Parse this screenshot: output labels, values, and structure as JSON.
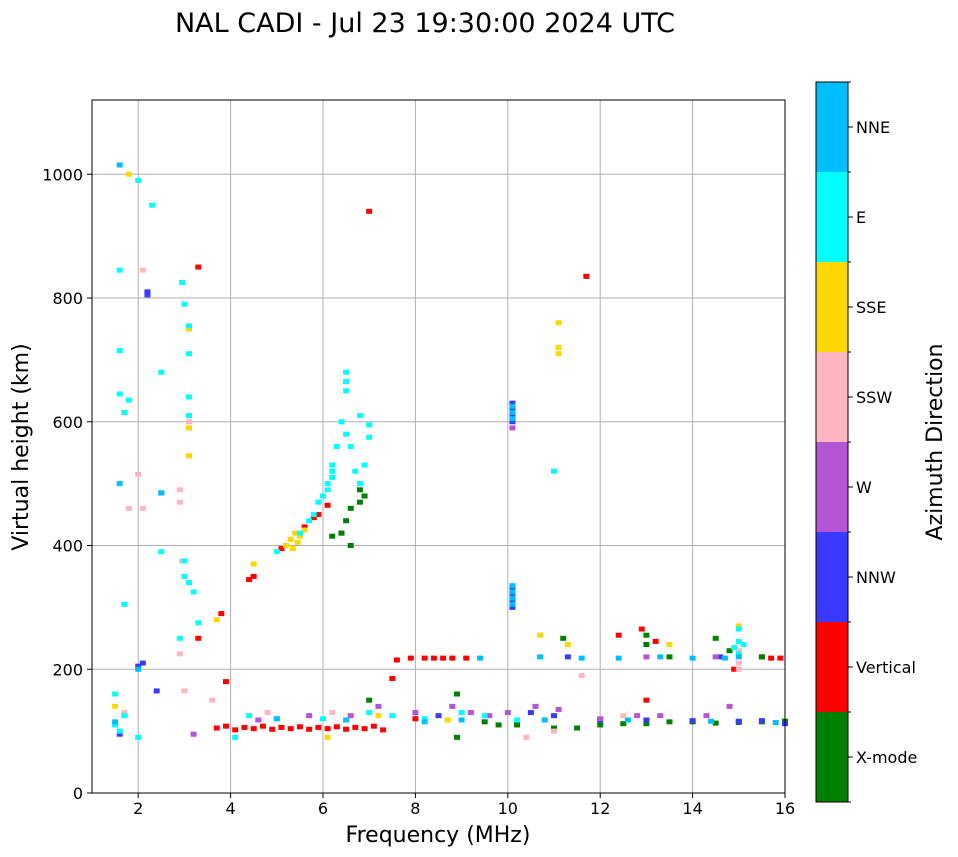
{
  "chart_data": {
    "type": "scatter",
    "title": "NAL CADI - Jul 23 19:30:00 2024 UTC",
    "xlabel": "Frequency (MHz)",
    "ylabel": "Virtual height (km)",
    "xlim": [
      1,
      16
    ],
    "ylim": [
      0,
      1120
    ],
    "xticks": [
      2,
      4,
      6,
      8,
      10,
      12,
      14,
      16
    ],
    "xtick_labels": [
      "2",
      "4",
      "6",
      "8",
      "10",
      "12",
      "14",
      "16"
    ],
    "yticks": [
      0,
      200,
      400,
      600,
      800,
      1000
    ],
    "ytick_labels": [
      "0",
      "200",
      "400",
      "600",
      "800",
      "1000"
    ],
    "grid": true,
    "colorbar": {
      "title": "Azimuth Direction",
      "categories": [
        {
          "label": "X-mode",
          "color": "#008000"
        },
        {
          "label": "Vertical",
          "color": "#ff0000"
        },
        {
          "label": "NNW",
          "color": "#3a3aff"
        },
        {
          "label": "W",
          "color": "#b455d6"
        },
        {
          "label": "SSW",
          "color": "#ffb6c1"
        },
        {
          "label": "SSE",
          "color": "#ffd700"
        },
        {
          "label": "E",
          "color": "#00ffff"
        },
        {
          "label": "NNE",
          "color": "#00bfff"
        }
      ]
    },
    "series": [
      {
        "name": "Vertical",
        "points": [
          [
            3.7,
            105
          ],
          [
            3.9,
            108
          ],
          [
            4.1,
            102
          ],
          [
            4.3,
            106
          ],
          [
            4.5,
            104
          ],
          [
            4.7,
            108
          ],
          [
            4.9,
            103
          ],
          [
            5.1,
            106
          ],
          [
            5.3,
            104
          ],
          [
            5.5,
            107
          ],
          [
            5.7,
            103
          ],
          [
            5.9,
            106
          ],
          [
            6.1,
            104
          ],
          [
            6.3,
            107
          ],
          [
            6.5,
            103
          ],
          [
            6.7,
            106
          ],
          [
            6.9,
            104
          ],
          [
            7.1,
            108
          ],
          [
            7.3,
            102
          ],
          [
            3.9,
            180
          ],
          [
            3.8,
            290
          ],
          [
            4.5,
            350
          ],
          [
            4.4,
            345
          ],
          [
            5.1,
            395
          ],
          [
            5.6,
            430
          ],
          [
            5.9,
            450
          ],
          [
            5.8,
            445
          ],
          [
            6.4,
            420
          ],
          [
            6.1,
            465
          ],
          [
            7.0,
            940
          ],
          [
            8.2,
            218
          ],
          [
            8.4,
            218
          ],
          [
            8.6,
            218
          ],
          [
            8.8,
            218
          ],
          [
            9.1,
            218
          ],
          [
            7.6,
            215
          ],
          [
            7.9,
            218
          ],
          [
            11.7,
            835
          ],
          [
            12.4,
            255
          ],
          [
            12.9,
            265
          ],
          [
            13.2,
            245
          ],
          [
            14.9,
            200
          ],
          [
            15.5,
            220
          ],
          [
            15.7,
            218
          ],
          [
            15.9,
            218
          ],
          [
            3.3,
            850
          ],
          [
            13.0,
            150
          ],
          [
            7.5,
            185
          ],
          [
            8.0,
            120
          ],
          [
            3.3,
            250
          ]
        ]
      },
      {
        "name": "X-mode",
        "points": [
          [
            6.4,
            420
          ],
          [
            6.5,
            440
          ],
          [
            6.6,
            460
          ],
          [
            6.8,
            470
          ],
          [
            6.8,
            490
          ],
          [
            6.9,
            480
          ],
          [
            7.0,
            150
          ],
          [
            8.9,
            160
          ],
          [
            8.9,
            90
          ],
          [
            9.5,
            115
          ],
          [
            10.2,
            110
          ],
          [
            11.0,
            105
          ],
          [
            11.5,
            105
          ],
          [
            12.0,
            110
          ],
          [
            12.5,
            112
          ],
          [
            13.0,
            112
          ],
          [
            13.5,
            115
          ],
          [
            14.0,
            115
          ],
          [
            14.5,
            113
          ],
          [
            15.0,
            114
          ],
          [
            15.5,
            115
          ],
          [
            16.0,
            116
          ],
          [
            13.0,
            255
          ],
          [
            14.5,
            250
          ],
          [
            14.8,
            230
          ],
          [
            15.5,
            220
          ],
          [
            11.2,
            250
          ],
          [
            13.5,
            220
          ],
          [
            13.0,
            240
          ],
          [
            6.2,
            415
          ],
          [
            6.6,
            400
          ],
          [
            9.8,
            110
          ]
        ]
      },
      {
        "name": "NNW",
        "points": [
          [
            10.1,
            620
          ],
          [
            10.1,
            610
          ],
          [
            10.1,
            630
          ],
          [
            10.1,
            600
          ],
          [
            10.1,
            330
          ],
          [
            10.1,
            320
          ],
          [
            10.1,
            310
          ],
          [
            10.1,
            300
          ],
          [
            2.2,
            810
          ],
          [
            2.2,
            805
          ],
          [
            2.1,
            210
          ],
          [
            11.3,
            220
          ],
          [
            10.5,
            130
          ],
          [
            11.0,
            125
          ],
          [
            12.0,
            118
          ],
          [
            13.0,
            118
          ],
          [
            14.0,
            117
          ],
          [
            15.0,
            116
          ],
          [
            15.5,
            117
          ],
          [
            16.0,
            112
          ],
          [
            2.5,
            485
          ],
          [
            1.6,
            95
          ],
          [
            2.4,
            165
          ],
          [
            8.5,
            125
          ],
          [
            14.6,
            220
          ],
          [
            2.0,
            205
          ]
        ]
      },
      {
        "name": "W",
        "points": [
          [
            8.8,
            140
          ],
          [
            9.2,
            130
          ],
          [
            9.6,
            125
          ],
          [
            10.0,
            130
          ],
          [
            10.6,
            140
          ],
          [
            11.1,
            135
          ],
          [
            12.0,
            120
          ],
          [
            12.8,
            125
          ],
          [
            13.3,
            125
          ],
          [
            14.3,
            125
          ],
          [
            14.8,
            140
          ],
          [
            13.0,
            220
          ],
          [
            7.2,
            140
          ],
          [
            6.6,
            125
          ],
          [
            5.7,
            125
          ],
          [
            4.6,
            118
          ],
          [
            8.0,
            130
          ],
          [
            3.2,
            95
          ],
          [
            14.5,
            220
          ],
          [
            10.1,
            590
          ]
        ]
      },
      {
        "name": "SSW",
        "points": [
          [
            1.8,
            460
          ],
          [
            2.1,
            460
          ],
          [
            2.0,
            515
          ],
          [
            2.9,
            470
          ],
          [
            2.9,
            490
          ],
          [
            2.95,
            375
          ],
          [
            2.9,
            225
          ],
          [
            3.6,
            150
          ],
          [
            4.8,
            130
          ],
          [
            6.2,
            130
          ],
          [
            10.4,
            90
          ],
          [
            11.0,
            100
          ],
          [
            11.6,
            190
          ],
          [
            1.7,
            130
          ],
          [
            3.0,
            165
          ],
          [
            12.5,
            125
          ],
          [
            15.0,
            200
          ],
          [
            15.0,
            230
          ],
          [
            15.0,
            210
          ],
          [
            3.1,
            600
          ],
          [
            2.1,
            845
          ]
        ]
      },
      {
        "name": "SSE",
        "points": [
          [
            4.5,
            370
          ],
          [
            5.2,
            400
          ],
          [
            5.3,
            410
          ],
          [
            5.4,
            420
          ],
          [
            5.5,
            415
          ],
          [
            5.6,
            425
          ],
          [
            5.45,
            405
          ],
          [
            5.35,
            395
          ],
          [
            3.1,
            590
          ],
          [
            3.1,
            545
          ],
          [
            3.1,
            750
          ],
          [
            3.1,
            640
          ],
          [
            11.1,
            760
          ],
          [
            11.1,
            710
          ],
          [
            11.1,
            720
          ],
          [
            10.7,
            255
          ],
          [
            11.3,
            240
          ],
          [
            6.1,
            90
          ],
          [
            1.5,
            140
          ],
          [
            1.8,
            1000
          ],
          [
            7.2,
            125
          ],
          [
            8.7,
            118
          ],
          [
            13.5,
            240
          ],
          [
            15.0,
            270
          ],
          [
            3.7,
            280
          ]
        ]
      },
      {
        "name": "E",
        "points": [
          [
            5.0,
            390
          ],
          [
            5.5,
            420
          ],
          [
            5.7,
            440
          ],
          [
            5.8,
            450
          ],
          [
            5.9,
            470
          ],
          [
            6.0,
            480
          ],
          [
            6.1,
            490
          ],
          [
            6.2,
            510
          ],
          [
            6.2,
            530
          ],
          [
            6.3,
            560
          ],
          [
            6.4,
            600
          ],
          [
            6.5,
            580
          ],
          [
            6.6,
            560
          ],
          [
            6.7,
            520
          ],
          [
            6.8,
            500
          ],
          [
            6.9,
            530
          ],
          [
            6.5,
            680
          ],
          [
            6.5,
            665
          ],
          [
            6.5,
            650
          ],
          [
            6.8,
            610
          ],
          [
            7.0,
            595
          ],
          [
            7.0,
            575
          ],
          [
            6.1,
            500
          ],
          [
            6.2,
            520
          ],
          [
            3.1,
            755
          ],
          [
            3.1,
            710
          ],
          [
            3.1,
            640
          ],
          [
            3.1,
            610
          ],
          [
            3.0,
            790
          ],
          [
            2.95,
            825
          ],
          [
            2.0,
            990
          ],
          [
            2.3,
            950
          ],
          [
            1.6,
            845
          ],
          [
            1.6,
            715
          ],
          [
            1.6,
            645
          ],
          [
            1.8,
            635
          ],
          [
            1.7,
            615
          ],
          [
            2.5,
            680
          ],
          [
            1.7,
            305
          ],
          [
            2.5,
            390
          ],
          [
            3.0,
            350
          ],
          [
            3.0,
            375
          ],
          [
            3.1,
            340
          ],
          [
            3.2,
            325
          ],
          [
            4.1,
            90
          ],
          [
            4.4,
            125
          ],
          [
            5.0,
            120
          ],
          [
            6.0,
            120
          ],
          [
            7.0,
            130
          ],
          [
            7.5,
            125
          ],
          [
            8.2,
            120
          ],
          [
            9.0,
            130
          ],
          [
            9.5,
            125
          ],
          [
            10.2,
            118
          ],
          [
            11.0,
            520
          ],
          [
            15.0,
            265
          ],
          [
            15.0,
            245
          ],
          [
            15.1,
            240
          ],
          [
            15.0,
            225
          ],
          [
            14.9,
            235
          ],
          [
            1.5,
            160
          ],
          [
            1.6,
            100
          ],
          [
            1.7,
            125
          ],
          [
            2.0,
            90
          ],
          [
            1.5,
            110
          ],
          [
            2.9,
            250
          ],
          [
            3.3,
            275
          ]
        ]
      },
      {
        "name": "NNE",
        "points": [
          [
            10.1,
            625
          ],
          [
            10.1,
            615
          ],
          [
            10.1,
            605
          ],
          [
            10.1,
            335
          ],
          [
            10.1,
            325
          ],
          [
            10.1,
            315
          ],
          [
            10.1,
            305
          ],
          [
            9.4,
            218
          ],
          [
            10.7,
            220
          ],
          [
            11.6,
            218
          ],
          [
            12.4,
            218
          ],
          [
            13.3,
            220
          ],
          [
            14.0,
            218
          ],
          [
            14.7,
            218
          ],
          [
            15.0,
            220
          ],
          [
            2.0,
            200
          ],
          [
            2.5,
            485
          ],
          [
            1.6,
            500
          ],
          [
            1.6,
            1015
          ],
          [
            5.0,
            120
          ],
          [
            6.5,
            118
          ],
          [
            8.2,
            115
          ],
          [
            9.0,
            118
          ],
          [
            10.8,
            118
          ],
          [
            12.6,
            118
          ],
          [
            14.4,
            116
          ],
          [
            15.8,
            114
          ],
          [
            1.5,
            115
          ]
        ]
      }
    ]
  }
}
